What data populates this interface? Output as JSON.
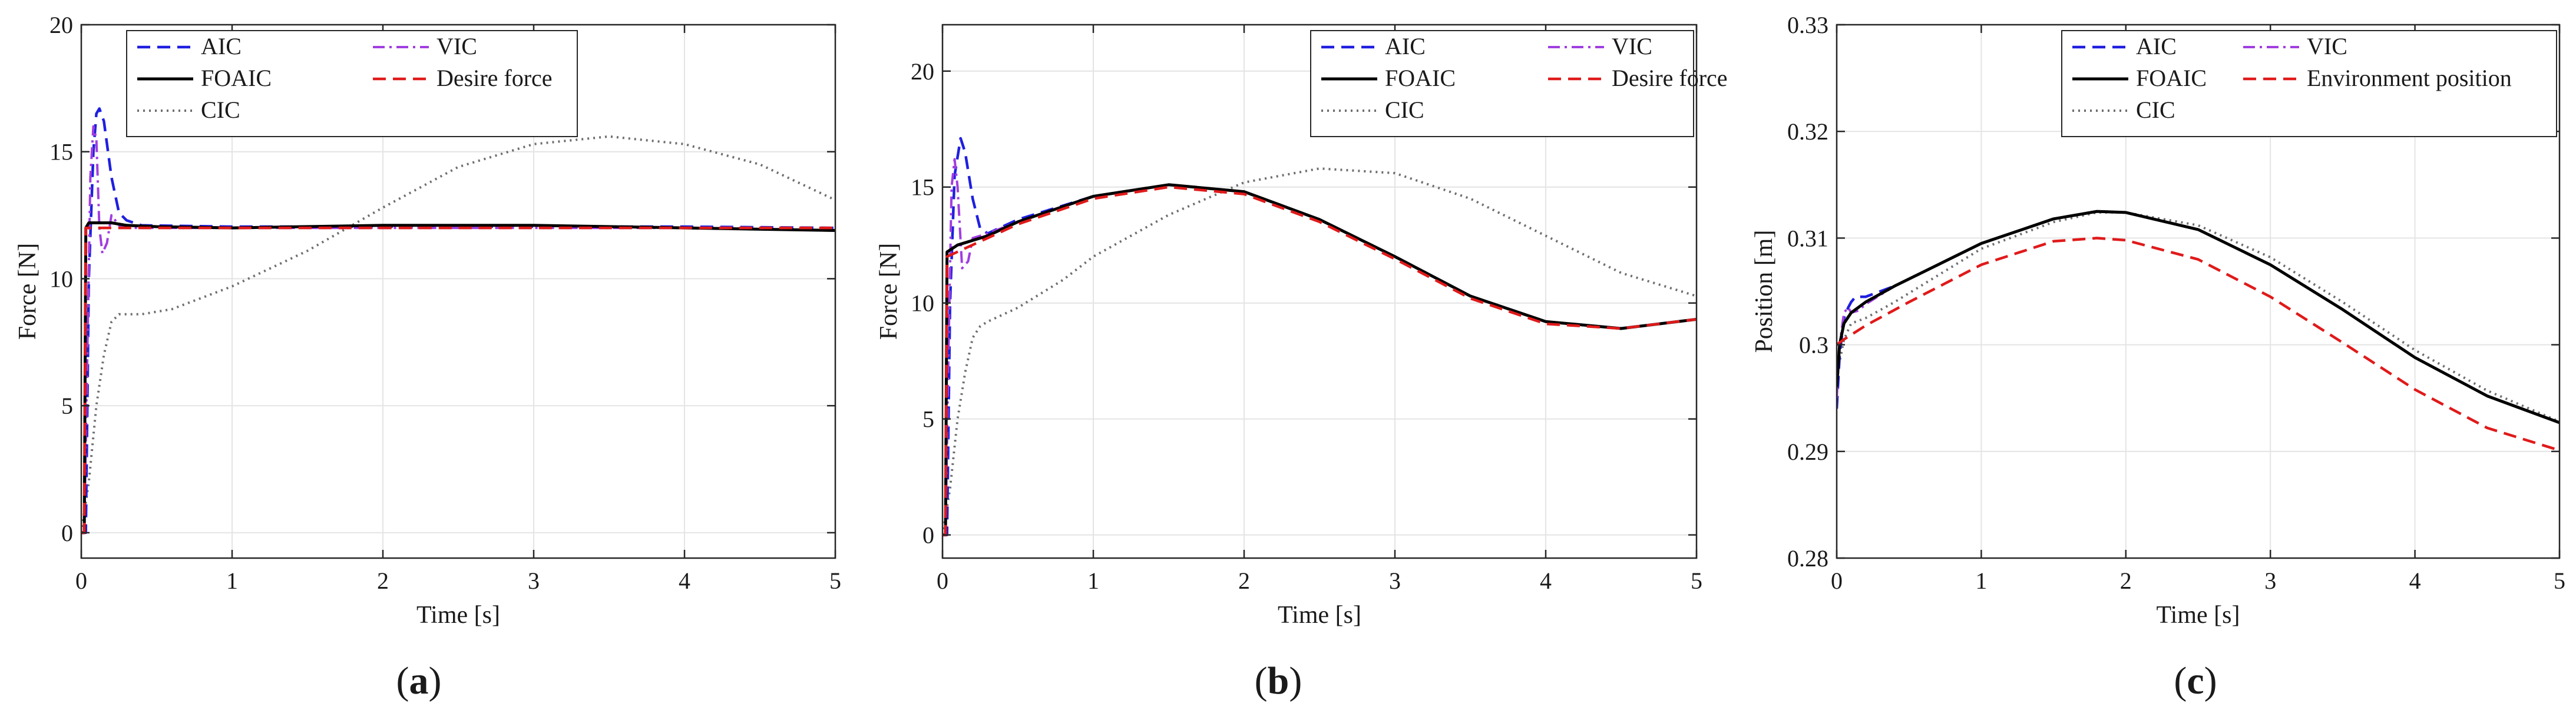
{
  "colors": {
    "AIC": "#1f1fe0",
    "VIC": "#a13ee0",
    "FOAIC": "#000000",
    "Desire force": "#e01a1a",
    "Environment position": "#e01a1a",
    "CIC": "#6e6e6e",
    "grid": "#e4e4e4",
    "axis": "#262626"
  },
  "chart_data": [
    {
      "type": "line",
      "caption": {
        "open": "(",
        "letter": "a",
        "close": ")"
      },
      "xlabel": "Time [s]",
      "ylabel": "Force [N]",
      "xlim": [
        0,
        5
      ],
      "ylim": [
        -1,
        20
      ],
      "xticks": [
        0,
        1,
        2,
        3,
        4,
        5
      ],
      "yticks": [
        0,
        5,
        10,
        15,
        20
      ],
      "grid": true,
      "legend": {
        "placement": "top-left",
        "columns": 2,
        "entries": [
          "AIC",
          "VIC",
          "FOAIC",
          "Desire force",
          "CIC"
        ]
      },
      "series": [
        {
          "name": "AIC",
          "style": "dashed",
          "x": [
            0,
            0.03,
            0.05,
            0.08,
            0.1,
            0.12,
            0.15,
            0.2,
            0.25,
            0.3,
            0.4,
            1,
            2,
            3,
            4,
            5
          ],
          "y": [
            0,
            0,
            10,
            15,
            16.5,
            16.7,
            16.2,
            14,
            12.6,
            12.3,
            12.1,
            12.05,
            12.05,
            12.05,
            12.05,
            12.0
          ]
        },
        {
          "name": "VIC",
          "style": "dashdot",
          "x": [
            0,
            0.02,
            0.04,
            0.06,
            0.08,
            0.1,
            0.12,
            0.14,
            0.17,
            0.2,
            0.25,
            0.3,
            1,
            2,
            3,
            4,
            5
          ],
          "y": [
            0,
            0,
            7,
            14,
            16,
            15.5,
            12,
            11,
            11.4,
            12.5,
            12.1,
            12.0,
            12.0,
            12.0,
            12.0,
            12.0,
            11.9
          ]
        },
        {
          "name": "FOAIC",
          "style": "solid",
          "x": [
            0,
            0.02,
            0.03,
            0.05,
            0.1,
            0.2,
            0.3,
            0.5,
            1,
            2,
            3,
            4,
            5
          ],
          "y": [
            0,
            0,
            12,
            12.2,
            12.2,
            12.2,
            12.1,
            12.05,
            12.0,
            12.1,
            12.1,
            12.0,
            11.9
          ]
        },
        {
          "name": "Desire force",
          "style": "dashed",
          "x": [
            0,
            0.02,
            0.03,
            0.5,
            1,
            2,
            3,
            4,
            5
          ],
          "y": [
            0,
            0,
            12,
            12,
            12,
            12,
            12,
            12,
            12
          ]
        },
        {
          "name": "CIC",
          "style": "dotted",
          "x": [
            0,
            0.05,
            0.1,
            0.15,
            0.2,
            0.25,
            0.3,
            0.4,
            0.6,
            1.0,
            1.5,
            2.0,
            2.5,
            3.0,
            3.5,
            4.0,
            4.5,
            5.0
          ],
          "y": [
            0,
            2,
            5,
            7,
            8.3,
            8.6,
            8.6,
            8.6,
            8.8,
            9.7,
            11.1,
            12.8,
            14.4,
            15.3,
            15.6,
            15.3,
            14.5,
            13.1
          ]
        }
      ]
    },
    {
      "type": "line",
      "caption": {
        "open": "(",
        "letter": "b",
        "close": ")"
      },
      "xlabel": "Time [s]",
      "ylabel": "Force [N]",
      "xlim": [
        0,
        5
      ],
      "ylim": [
        -1,
        22
      ],
      "xticks": [
        0,
        1,
        2,
        3,
        4,
        5
      ],
      "yticks": [
        0,
        5,
        10,
        15,
        20
      ],
      "grid": true,
      "legend": {
        "placement": "top-right",
        "columns": 2,
        "entries": [
          "AIC",
          "VIC",
          "FOAIC",
          "Desire force",
          "CIC"
        ]
      },
      "series": [
        {
          "name": "AIC",
          "style": "dashed",
          "x": [
            0,
            0.03,
            0.05,
            0.08,
            0.12,
            0.15,
            0.2,
            0.25,
            0.3,
            0.5,
            1.0,
            1.5,
            2.0,
            2.5,
            3.0,
            3.5,
            4.0,
            4.5,
            5.0
          ],
          "y": [
            0,
            0,
            10,
            15.5,
            17.1,
            16.5,
            14.5,
            13.2,
            13.0,
            13.6,
            14.6,
            15.1,
            14.8,
            13.6,
            12.0,
            10.3,
            9.2,
            8.9,
            9.3
          ]
        },
        {
          "name": "VIC",
          "style": "dashdot",
          "x": [
            0,
            0.02,
            0.04,
            0.06,
            0.08,
            0.1,
            0.13,
            0.17,
            0.2,
            0.25,
            0.3,
            0.5,
            1.0,
            1.5,
            2.0,
            2.5,
            3.0,
            3.5,
            4.0,
            4.5,
            5.0
          ],
          "y": [
            0,
            0,
            8,
            15,
            16.2,
            15,
            11.5,
            11.8,
            12.8,
            12.9,
            13.0,
            13.5,
            14.6,
            15.1,
            14.8,
            13.6,
            12.0,
            10.3,
            9.2,
            8.9,
            9.3
          ]
        },
        {
          "name": "FOAIC",
          "style": "solid",
          "x": [
            0,
            0.02,
            0.03,
            0.1,
            0.3,
            0.5,
            1.0,
            1.5,
            2.0,
            2.5,
            3.0,
            3.5,
            4.0,
            4.5,
            5.0
          ],
          "y": [
            0,
            0,
            12.2,
            12.5,
            12.9,
            13.5,
            14.6,
            15.1,
            14.8,
            13.6,
            12.0,
            10.3,
            9.2,
            8.9,
            9.3
          ]
        },
        {
          "name": "Desire force",
          "style": "dashed",
          "x": [
            0,
            0.02,
            0.03,
            0.5,
            1.0,
            1.5,
            2.0,
            2.5,
            3.0,
            3.5,
            4.0,
            4.5,
            5.0
          ],
          "y": [
            0,
            0,
            12,
            13.4,
            14.5,
            15.0,
            14.7,
            13.5,
            11.9,
            10.2,
            9.1,
            8.9,
            9.3
          ]
        },
        {
          "name": "CIC",
          "style": "dotted",
          "x": [
            0,
            0.05,
            0.1,
            0.15,
            0.2,
            0.25,
            0.3,
            0.5,
            0.8,
            1.0,
            1.5,
            2.0,
            2.5,
            3.0,
            3.5,
            4.0,
            4.5,
            5.0
          ],
          "y": [
            0,
            2,
            5,
            7,
            8.5,
            9.0,
            9.2,
            9.8,
            11.0,
            12.0,
            13.8,
            15.2,
            15.8,
            15.6,
            14.5,
            12.9,
            11.3,
            10.3
          ]
        }
      ]
    },
    {
      "type": "line",
      "caption": {
        "open": "(",
        "letter": "c",
        "close": ")"
      },
      "xlabel": "Time [s]",
      "ylabel": "Position [m]",
      "xlim": [
        0,
        5
      ],
      "ylim": [
        0.28,
        0.33
      ],
      "xticks": [
        0,
        1,
        2,
        3,
        4,
        5
      ],
      "yticks": [
        0.28,
        0.29,
        0.3,
        0.31,
        0.32,
        0.33
      ],
      "ytick_labels": [
        "0.28",
        "0.29",
        "0.3",
        "0.31",
        "0.32",
        "0.33"
      ],
      "grid": true,
      "legend": {
        "placement": "top-right",
        "columns": 2,
        "entries": [
          "AIC",
          "VIC",
          "FOAIC",
          "Environment position",
          "CIC"
        ]
      },
      "series": [
        {
          "name": "AIC",
          "style": "dashed",
          "x": [
            0,
            0.02,
            0.05,
            0.08,
            0.1,
            0.13,
            0.16,
            0.2,
            0.4,
            0.7,
            1.0,
            1.5,
            1.8,
            2.0,
            2.5,
            3.0,
            3.5,
            4.0,
            4.5,
            5.0
          ],
          "y": [
            0.294,
            0.299,
            0.3025,
            0.3035,
            0.304,
            0.3045,
            0.3045,
            0.3045,
            0.3055,
            0.3075,
            0.3095,
            0.3118,
            0.3125,
            0.3124,
            0.3108,
            0.3075,
            0.3033,
            0.2988,
            0.2952,
            0.2927
          ]
        },
        {
          "name": "VIC",
          "style": "dashdot",
          "x": [
            0,
            0.02,
            0.05,
            0.08,
            0.1,
            0.15,
            0.2,
            0.4,
            0.7,
            1.0,
            1.5,
            1.8,
            2.0,
            2.5,
            3.0,
            3.5,
            4.0,
            4.5,
            5.0
          ],
          "y": [
            0.295,
            0.3,
            0.303,
            0.3035,
            0.303,
            0.3032,
            0.3038,
            0.3055,
            0.3075,
            0.3095,
            0.3118,
            0.3125,
            0.3124,
            0.3108,
            0.3075,
            0.3033,
            0.2988,
            0.2952,
            0.2927
          ]
        },
        {
          "name": "FOAIC",
          "style": "solid",
          "x": [
            0,
            0.02,
            0.05,
            0.1,
            0.2,
            0.4,
            0.7,
            1.0,
            1.5,
            1.8,
            2.0,
            2.5,
            3.0,
            3.5,
            4.0,
            4.5,
            5.0
          ],
          "y": [
            0.296,
            0.3,
            0.302,
            0.303,
            0.304,
            0.3055,
            0.3075,
            0.3095,
            0.3118,
            0.3125,
            0.3124,
            0.3108,
            0.3075,
            0.3033,
            0.2988,
            0.2952,
            0.2927
          ]
        },
        {
          "name": "Environment position",
          "style": "dashed",
          "x": [
            0,
            0.05,
            0.2,
            0.5,
            1.0,
            1.5,
            1.8,
            2.0,
            2.5,
            3.0,
            3.5,
            4.0,
            4.5,
            5.0
          ],
          "y": [
            0.3,
            0.3005,
            0.3018,
            0.304,
            0.3075,
            0.3097,
            0.31,
            0.3098,
            0.308,
            0.3045,
            0.3002,
            0.2958,
            0.2922,
            0.2901
          ]
        },
        {
          "name": "CIC",
          "style": "dotted",
          "x": [
            0,
            0.05,
            0.1,
            0.2,
            0.4,
            0.7,
            1.0,
            1.5,
            1.8,
            2.0,
            2.5,
            3.0,
            3.5,
            4.0,
            4.5,
            5.0
          ],
          "y": [
            0.297,
            0.3005,
            0.302,
            0.3025,
            0.304,
            0.3065,
            0.309,
            0.3115,
            0.3124,
            0.3124,
            0.3112,
            0.3082,
            0.304,
            0.2995,
            0.2957,
            0.2928
          ]
        }
      ]
    }
  ]
}
